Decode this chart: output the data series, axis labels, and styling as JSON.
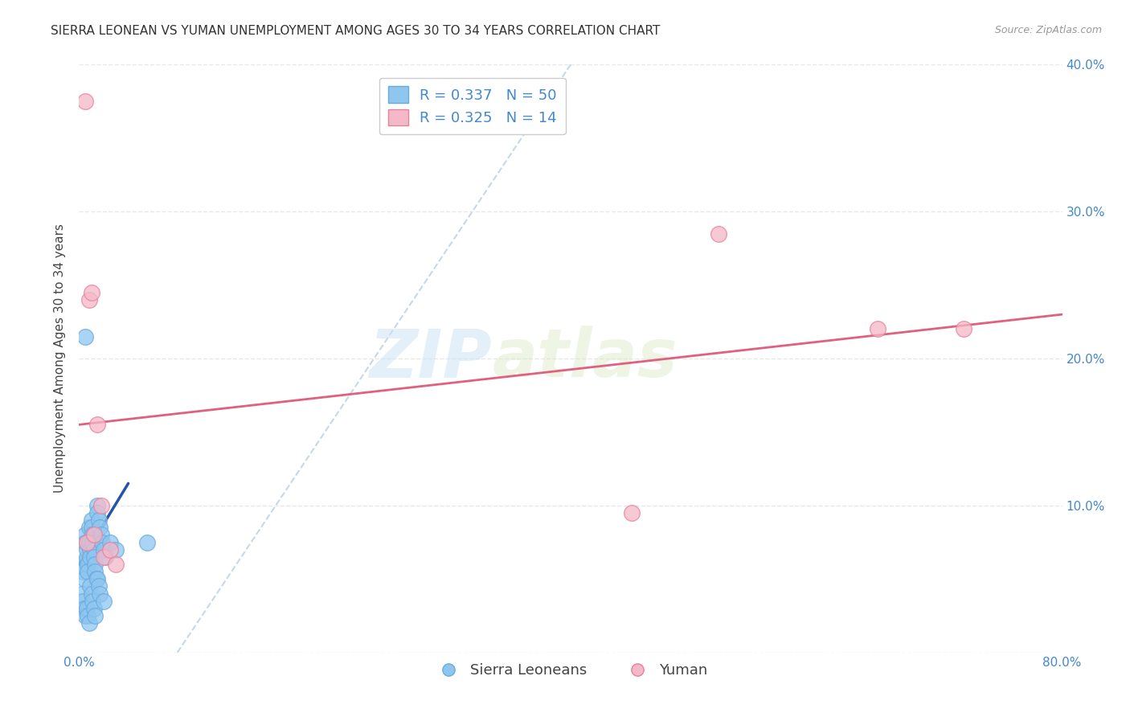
{
  "title": "SIERRA LEONEAN VS YUMAN UNEMPLOYMENT AMONG AGES 30 TO 34 YEARS CORRELATION CHART",
  "source": "Source: ZipAtlas.com",
  "ylabel": "Unemployment Among Ages 30 to 34 years",
  "xlim": [
    0.0,
    0.8
  ],
  "ylim": [
    0.0,
    0.4
  ],
  "xticks": [
    0.0,
    0.1,
    0.2,
    0.3,
    0.4,
    0.5,
    0.6,
    0.7,
    0.8
  ],
  "xticklabels": [
    "0.0%",
    "",
    "",
    "",
    "",
    "",
    "",
    "",
    "80.0%"
  ],
  "yticks": [
    0.0,
    0.1,
    0.2,
    0.3,
    0.4
  ],
  "yticklabels_right": [
    "",
    "10.0%",
    "20.0%",
    "30.0%",
    "40.0%"
  ],
  "blue_scatter_x": [
    0.002,
    0.003,
    0.004,
    0.005,
    0.005,
    0.006,
    0.006,
    0.007,
    0.007,
    0.008,
    0.008,
    0.009,
    0.009,
    0.01,
    0.01,
    0.011,
    0.011,
    0.012,
    0.012,
    0.013,
    0.013,
    0.014,
    0.015,
    0.015,
    0.016,
    0.017,
    0.018,
    0.019,
    0.02,
    0.021,
    0.002,
    0.003,
    0.004,
    0.005,
    0.006,
    0.007,
    0.008,
    0.009,
    0.01,
    0.011,
    0.012,
    0.013,
    0.025,
    0.03,
    0.015,
    0.016,
    0.017,
    0.02,
    0.055,
    0.005
  ],
  "blue_scatter_y": [
    0.06,
    0.055,
    0.05,
    0.08,
    0.075,
    0.065,
    0.07,
    0.06,
    0.055,
    0.085,
    0.075,
    0.07,
    0.065,
    0.09,
    0.085,
    0.08,
    0.075,
    0.07,
    0.065,
    0.06,
    0.055,
    0.05,
    0.1,
    0.095,
    0.09,
    0.085,
    0.08,
    0.075,
    0.07,
    0.065,
    0.04,
    0.035,
    0.03,
    0.025,
    0.03,
    0.025,
    0.02,
    0.045,
    0.04,
    0.035,
    0.03,
    0.025,
    0.075,
    0.07,
    0.05,
    0.045,
    0.04,
    0.035,
    0.075,
    0.215
  ],
  "pink_scatter_x": [
    0.005,
    0.006,
    0.008,
    0.01,
    0.012,
    0.015,
    0.018,
    0.02,
    0.025,
    0.03,
    0.45,
    0.52,
    0.65,
    0.72
  ],
  "pink_scatter_y": [
    0.375,
    0.075,
    0.24,
    0.245,
    0.08,
    0.155,
    0.1,
    0.065,
    0.07,
    0.06,
    0.095,
    0.285,
    0.22,
    0.22
  ],
  "blue_short_line_x": [
    0.0,
    0.04
  ],
  "blue_short_line_y": [
    0.06,
    0.115
  ],
  "pink_reg_line_x": [
    0.0,
    0.8
  ],
  "pink_reg_line_y": [
    0.155,
    0.23
  ],
  "diagonal_line_x": [
    0.08,
    0.4
  ],
  "diagonal_line_y": [
    0.0,
    0.4
  ],
  "legend_blue_label_r": "R = ",
  "legend_blue_r_val": "0.337",
  "legend_blue_label_n": "   N = ",
  "legend_blue_n_val": "50",
  "legend_pink_label_r": "R = ",
  "legend_pink_r_val": "0.325",
  "legend_pink_label_n": "   N = ",
  "legend_pink_n_val": "14",
  "legend_bottom_blue": "Sierra Leoneans",
  "legend_bottom_pink": "Yuman",
  "blue_scatter_color": "#8ec6f0",
  "blue_scatter_edge": "#6aaade",
  "pink_scatter_color": "#f5b8c8",
  "pink_scatter_edge": "#e8809a",
  "blue_line_color": "#2255aa",
  "pink_line_color": "#e06080",
  "diagonal_color": "#b8cfe0",
  "watermark_zip": "ZIP",
  "watermark_atlas": "atlas",
  "grid_color": "#e8e8e8",
  "background_color": "#ffffff",
  "title_fontsize": 11,
  "axis_label_fontsize": 11,
  "tick_fontsize": 11,
  "legend_fontsize": 13,
  "source_fontsize": 9
}
